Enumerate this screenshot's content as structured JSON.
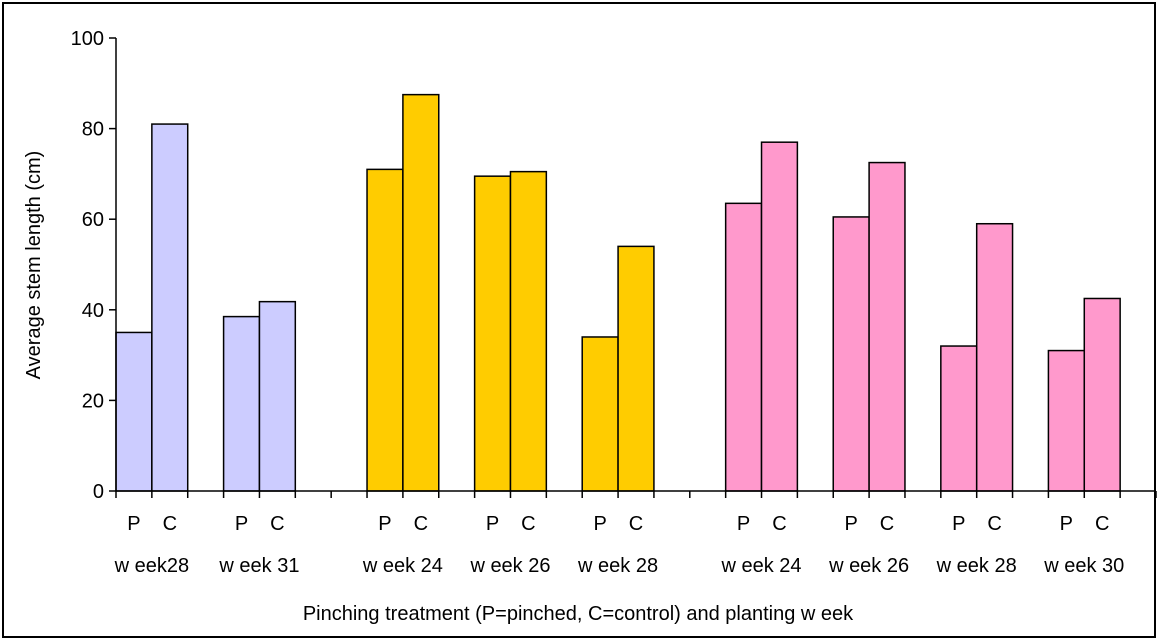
{
  "chart_data": {
    "type": "bar",
    "title": "",
    "xlabel": "Pinching treatment (P=pinched, C=control) and planting w eek",
    "ylabel": "Average stem length (cm)",
    "ylim": [
      0,
      100
    ],
    "yticks": [
      0,
      20,
      40,
      60,
      80,
      100
    ],
    "grid": false,
    "legend": "none",
    "treatment_labels": [
      "P",
      "C"
    ],
    "groups": [
      {
        "color": "#ccccff",
        "weeks": [
          {
            "label": "w eek28",
            "values": [
              35,
              81
            ]
          },
          {
            "label": "w eek 31",
            "values": [
              38.5,
              41.8
            ]
          }
        ]
      },
      {
        "color": "#ffcc00",
        "weeks": [
          {
            "label": "w eek 24",
            "values": [
              71,
              87.5
            ]
          },
          {
            "label": "w eek 26",
            "values": [
              69.5,
              70.5
            ]
          },
          {
            "label": "w eek 28",
            "values": [
              34,
              54
            ]
          }
        ]
      },
      {
        "color": "#ff99cc",
        "weeks": [
          {
            "label": "w eek 24",
            "values": [
              63.5,
              77
            ]
          },
          {
            "label": "w eek 26",
            "values": [
              60.5,
              72.5
            ]
          },
          {
            "label": "w eek 28",
            "values": [
              32,
              59
            ]
          },
          {
            "label": "w eek 30",
            "values": [
              31,
              42.5
            ]
          }
        ]
      }
    ]
  }
}
